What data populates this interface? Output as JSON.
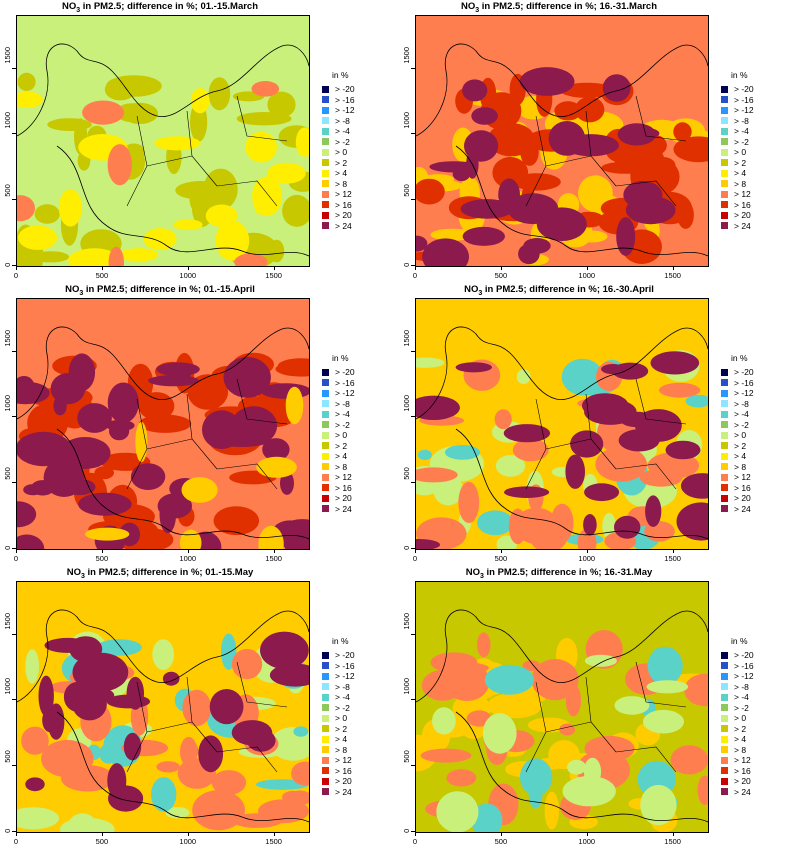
{
  "panels": [
    {
      "title_pre": "NO",
      "title_sub": "3",
      "title_post": " in PM2.5; difference in %; 01.-15.March",
      "base": "#c8f07a",
      "layers": [
        [
          "#c8c800",
          0.28
        ],
        [
          "#ffee00",
          0.14
        ],
        [
          "#ff7e50",
          0.05
        ]
      ]
    },
    {
      "title_pre": "NO",
      "title_sub": "3",
      "title_post": " in PM2.5; difference in %; 16.-31.March",
      "base": "#ff7e50",
      "layers": [
        [
          "#ffcc00",
          0.22
        ],
        [
          "#e03000",
          0.32
        ],
        [
          "#8c1a4c",
          0.2
        ]
      ]
    },
    {
      "title_pre": "NO",
      "title_sub": "3",
      "title_post": " in PM2.5; difference in %; 01.-15.April",
      "base": "#ff7e50",
      "layers": [
        [
          "#e03000",
          0.3
        ],
        [
          "#8c1a4c",
          0.32
        ],
        [
          "#ffcc00",
          0.06
        ]
      ]
    },
    {
      "title_pre": "NO",
      "title_sub": "3",
      "title_post": " in PM2.5; difference in %; 16.-30.April",
      "base": "#ffcc00",
      "layers": [
        [
          "#c8f07a",
          0.16
        ],
        [
          "#5ad2c8",
          0.1
        ],
        [
          "#ff7e50",
          0.2
        ],
        [
          "#8c1a4c",
          0.18
        ]
      ]
    },
    {
      "title_pre": "NO",
      "title_sub": "3",
      "title_post": " in PM2.5; difference in %; 01.-15.May",
      "base": "#ffcc00",
      "layers": [
        [
          "#c8f07a",
          0.14
        ],
        [
          "#5ad2c8",
          0.1
        ],
        [
          "#ff7e50",
          0.2
        ],
        [
          "#8c1a4c",
          0.18
        ]
      ]
    },
    {
      "title_pre": "NO",
      "title_sub": "3",
      "title_post": " in PM2.5; difference in %; 16.-31.May",
      "base": "#c8c800",
      "layers": [
        [
          "#ffcc00",
          0.22
        ],
        [
          "#ff7e50",
          0.22
        ],
        [
          "#5ad2c8",
          0.08
        ],
        [
          "#c8f07a",
          0.1
        ]
      ]
    }
  ],
  "axes": {
    "x_ticks": [
      "0",
      "500",
      "1000",
      "1500"
    ],
    "y_ticks": [
      "0",
      "500",
      "1000",
      "1500"
    ]
  },
  "legend": {
    "title": "in %",
    "items": [
      {
        "label": "> -20",
        "color": "#000050"
      },
      {
        "label": "> -16",
        "color": "#2850c8"
      },
      {
        "label": "> -12",
        "color": "#2896ff"
      },
      {
        "label": "> -8",
        "color": "#8ce6ff"
      },
      {
        "label": "> -4",
        "color": "#5ad2c8"
      },
      {
        "label": "> -2",
        "color": "#8cc85a"
      },
      {
        "label": "> 0",
        "color": "#c8f07a"
      },
      {
        "label": "> 2",
        "color": "#c8c800"
      },
      {
        "label": "> 4",
        "color": "#ffee00"
      },
      {
        "label": "> 8",
        "color": "#ffcc00"
      },
      {
        "label": "> 12",
        "color": "#ff7e50"
      },
      {
        "label": "> 16",
        "color": "#e03000"
      },
      {
        "label": "> 20",
        "color": "#c80000"
      },
      {
        "label": "> 24",
        "color": "#8c1a4c"
      }
    ]
  }
}
